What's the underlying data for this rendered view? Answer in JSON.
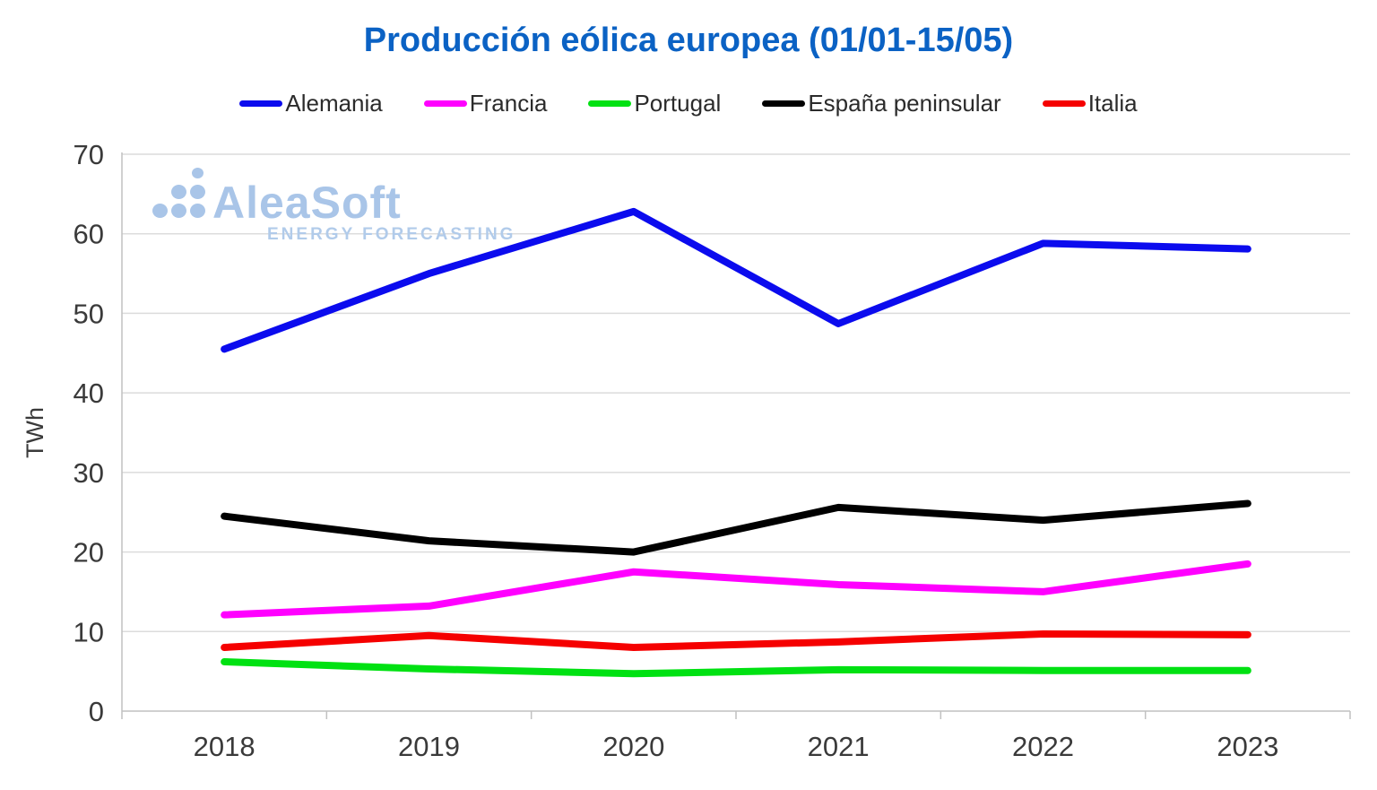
{
  "title": "Producción eólica europea (01/01-15/05)",
  "watermark": {
    "name": "AleaSoft",
    "subtitle": "ENERGY FORECASTING",
    "logo_color": "#a9c5e8"
  },
  "chart_data": {
    "type": "line",
    "title": "Producción eólica europea (01/01-15/05)",
    "categories": [
      "2018",
      "2019",
      "2020",
      "2021",
      "2022",
      "2023"
    ],
    "series": [
      {
        "name": "Alemania",
        "color": "#0b0bee",
        "values": [
          45.5,
          55.0,
          62.8,
          48.7,
          58.8,
          58.1
        ]
      },
      {
        "name": "Francia",
        "color": "#ff00ff",
        "values": [
          12.1,
          13.2,
          17.5,
          15.9,
          15.0,
          18.5
        ]
      },
      {
        "name": "Portugal",
        "color": "#00e112",
        "values": [
          6.2,
          5.3,
          4.7,
          5.2,
          5.1,
          5.1
        ]
      },
      {
        "name": "España peninsular",
        "color": "#000000",
        "values": [
          24.5,
          21.4,
          20.0,
          25.6,
          24.0,
          26.1
        ]
      },
      {
        "name": "Italia",
        "color": "#f50000",
        "values": [
          8.0,
          9.5,
          8.0,
          8.7,
          9.7,
          9.6
        ]
      }
    ],
    "xlabel": "",
    "ylabel": "TWh",
    "ylim": [
      0,
      70
    ],
    "ytick_step": 10,
    "yticks": [
      "0",
      "10",
      "20",
      "30",
      "40",
      "50",
      "60",
      "70"
    ],
    "grid": true,
    "legend_position": "top",
    "title_color": "#0b62c4",
    "grid_color": "#dcdcdc",
    "axis_color": "#c1c1c1",
    "tick_label_color": "#3a3a3a"
  }
}
